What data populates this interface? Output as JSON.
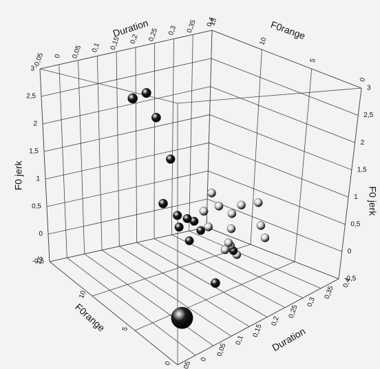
{
  "chart_data": {
    "type": "scatter3d",
    "x_label": "Duration",
    "y_label": "F0 jerk",
    "z_label": "F0range",
    "xlim": [
      -0.05,
      0.4
    ],
    "xticks": [
      {
        "value": -0.05,
        "label": "-0,05"
      },
      0,
      {
        "value": 0.05,
        "label": "0,05"
      },
      {
        "value": 0.1,
        "label": "0,1"
      },
      {
        "value": 0.15,
        "label": "0,15"
      },
      {
        "value": 0.2,
        "label": "0,2"
      },
      {
        "value": 0.25,
        "label": "0,25"
      },
      {
        "value": 0.3,
        "label": "0,3"
      },
      {
        "value": 0.35,
        "label": "0,35"
      },
      {
        "value": 0.4,
        "label": "0,4"
      }
    ],
    "ylim": [
      -0.5,
      3
    ],
    "yticks": [
      {
        "value": -0.5,
        "label": "-0,5"
      },
      0,
      {
        "value": 0.5,
        "label": "0,5"
      },
      1,
      {
        "value": 1.5,
        "label": "1,5"
      },
      2,
      {
        "value": 2.5,
        "label": "2,5"
      },
      3
    ],
    "zlim": [
      0,
      15
    ],
    "zticks": [
      0,
      5,
      10,
      15
    ],
    "grid": true,
    "series": [
      {
        "color": "#1a1a1a",
        "x": [
          0.01,
          0.045,
          0.07,
          0.108,
          0.089,
          0.128,
          0.155,
          0.133,
          0.174,
          0.193,
          0.162,
          0.287,
          0.163,
          -0.02
        ],
        "y": [
          2.75,
          2.8,
          2.38,
          1.66,
          0.97,
          0.71,
          0.61,
          0.51,
          0.53,
          0.34,
          0.23,
          -0.2,
          -0.22,
          0
        ],
        "z": [
          7.5,
          7.5,
          7.5,
          7.5,
          7.5,
          7.5,
          7.5,
          7.5,
          7.5,
          7.5,
          7.5,
          7.5,
          4.5,
          0.75
        ]
      },
      {
        "color": "#d4d4d4",
        "x": [
          0.22,
          0.241,
          0.303,
          0.35,
          0.2,
          0.278,
          0.214,
          0.278,
          0.361,
          0.375,
          0.272,
          0.263,
          0.297,
          0.278
        ],
        "y": [
          0.92,
          0.66,
          0.56,
          0.51,
          0.65,
          0.46,
          0.36,
          0.2,
          0.08,
          -0.17,
          -0.03,
          -0.13,
          -0.29,
          -0.09
        ],
        "z": [
          7.5,
          7.5,
          7.5,
          7.5,
          7.5,
          7.5,
          7.5,
          7.5,
          7.5,
          7.5,
          7.5,
          7.5,
          7.5,
          7.5
        ]
      }
    ]
  }
}
